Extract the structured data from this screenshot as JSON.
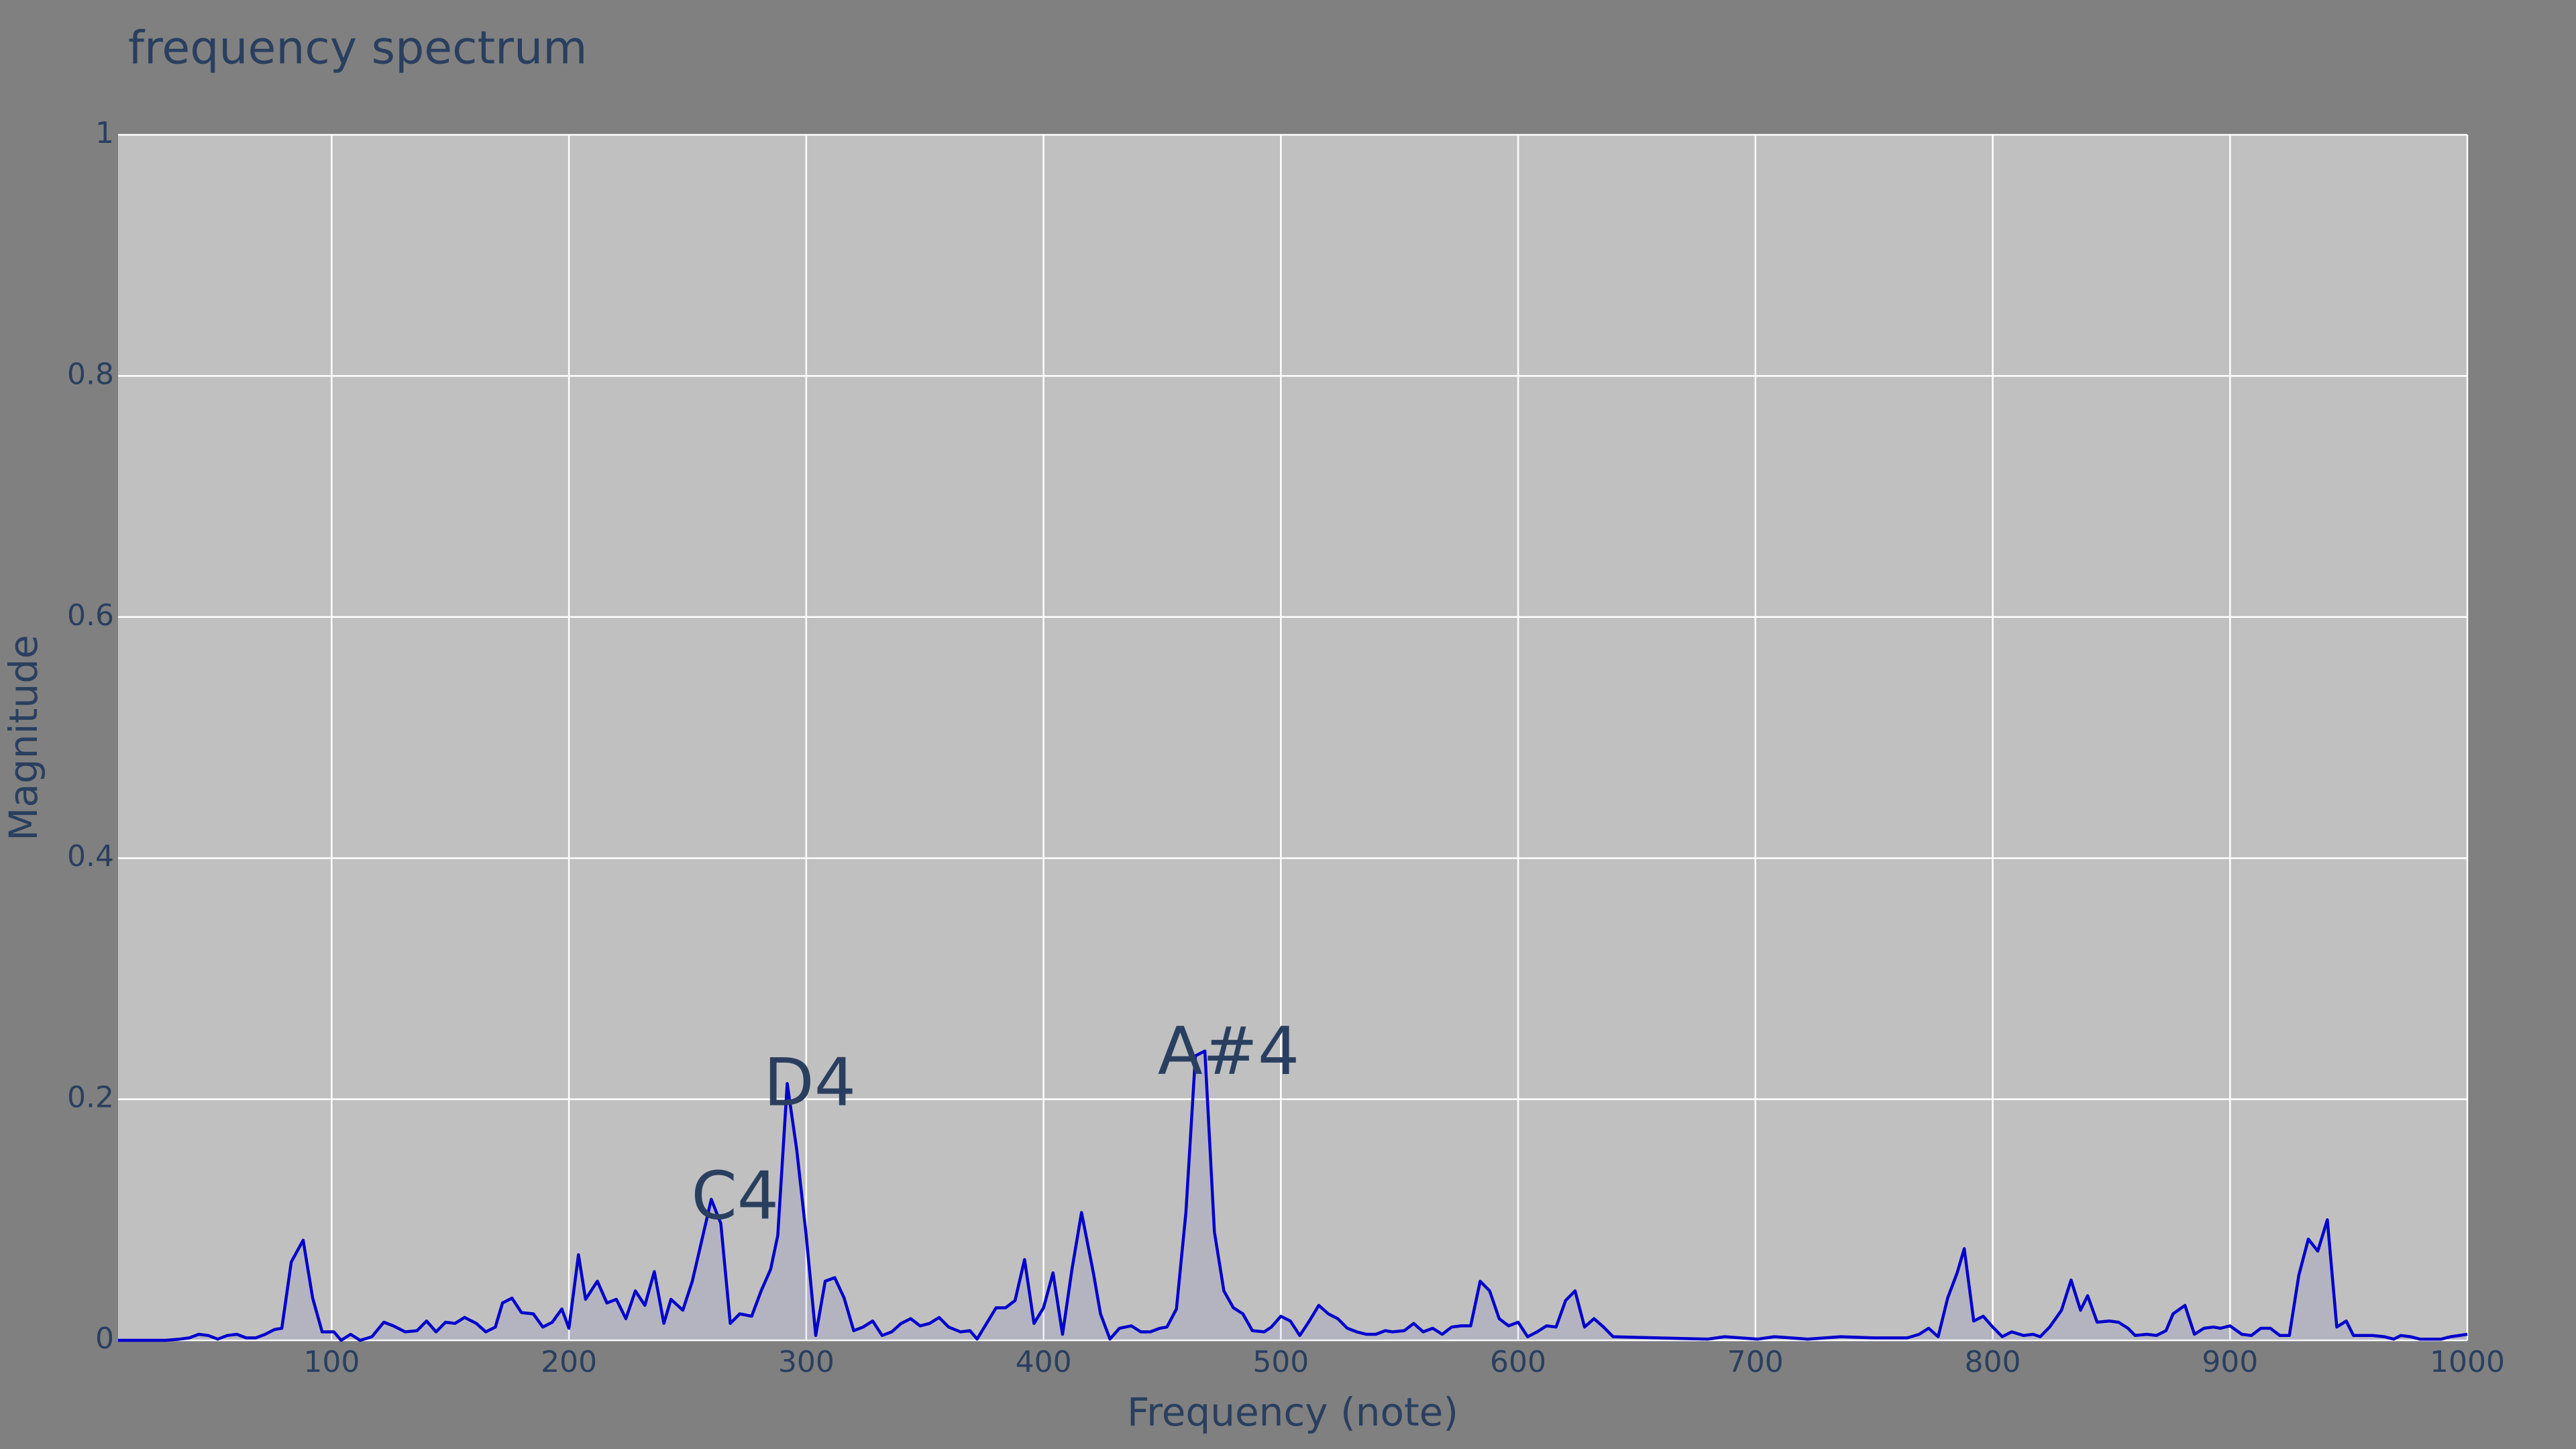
{
  "chart_data": {
    "type": "line",
    "title": "frequency spectrum",
    "x_label": "Frequency (note)",
    "y_label": "Magnitude",
    "x": [
      10,
      20,
      30,
      36,
      40,
      44,
      48,
      52,
      56,
      60,
      64,
      68,
      72,
      76,
      79,
      83,
      88,
      92,
      96,
      101,
      104,
      108,
      112,
      117,
      122,
      126,
      131,
      136,
      140,
      144,
      148,
      152,
      156,
      161,
      165,
      169,
      172,
      176,
      180,
      185,
      189,
      193,
      197,
      200,
      204,
      207,
      212,
      216,
      220,
      224,
      228,
      232,
      236,
      240,
      243,
      248,
      252,
      256,
      260,
      264,
      268,
      272,
      277,
      281,
      285,
      288,
      292,
      296,
      300,
      304,
      308,
      312,
      316,
      320,
      324,
      328,
      332,
      336,
      340,
      344,
      348,
      352,
      356,
      360,
      365,
      369,
      372,
      376,
      380,
      384,
      388,
      392,
      396,
      400,
      404,
      408,
      412,
      416,
      421,
      424,
      428,
      432,
      437,
      441,
      445,
      449,
      452,
      456,
      460,
      464,
      468,
      472,
      476,
      480,
      484,
      488,
      493,
      496,
      500,
      504,
      508,
      512,
      516,
      520,
      524,
      528,
      532,
      536,
      540,
      544,
      547,
      552,
      556,
      560,
      564,
      568,
      572,
      576,
      580,
      584,
      588,
      592,
      596,
      600,
      604,
      608,
      612,
      616,
      620,
      624,
      628,
      632,
      636,
      640,
      659,
      680,
      687,
      701,
      708,
      722,
      736,
      750,
      764,
      769,
      773,
      777,
      781,
      785,
      788,
      792,
      796,
      800,
      804,
      808,
      813,
      817,
      820,
      824,
      829,
      833,
      837,
      840,
      844,
      849,
      853,
      857,
      860,
      865,
      869,
      873,
      876,
      881,
      885,
      889,
      893,
      896,
      900,
      905,
      909,
      913,
      917,
      921,
      925,
      929,
      933,
      937,
      941,
      945,
      949,
      952,
      956,
      960,
      965,
      969,
      972,
      976,
      980,
      985,
      989,
      993,
      1000
    ],
    "values": [
      0,
      0,
      0,
      0.001,
      0.002,
      0.005,
      0.004,
      0.001,
      0.004,
      0.005,
      0.002,
      0.002,
      0.005,
      0.009,
      0.01,
      0.065,
      0.083,
      0.035,
      0.007,
      0.007,
      0,
      0.005,
      0,
      0.003,
      0.015,
      0.012,
      0.007,
      0.008,
      0.016,
      0.007,
      0.015,
      0.014,
      0.019,
      0.014,
      0.007,
      0.011,
      0.031,
      0.035,
      0.023,
      0.022,
      0.011,
      0.015,
      0.026,
      0.01,
      0.071,
      0.034,
      0.049,
      0.031,
      0.034,
      0.018,
      0.041,
      0.029,
      0.057,
      0.014,
      0.034,
      0.025,
      0.049,
      0.083,
      0.117,
      0.097,
      0.014,
      0.022,
      0.02,
      0.041,
      0.059,
      0.087,
      0.213,
      0.158,
      0.087,
      0.004,
      0.049,
      0.052,
      0.035,
      0.008,
      0.011,
      0.016,
      0.004,
      0.007,
      0.014,
      0.018,
      0.012,
      0.014,
      0.019,
      0.011,
      0.007,
      0.008,
      0.001,
      0.014,
      0.027,
      0.027,
      0.033,
      0.067,
      0.014,
      0.027,
      0.056,
      0.005,
      0.059,
      0.106,
      0.056,
      0.022,
      0.001,
      0.01,
      0.012,
      0.007,
      0.007,
      0.01,
      0.011,
      0.026,
      0.106,
      0.236,
      0.24,
      0.09,
      0.041,
      0.027,
      0.022,
      0.008,
      0.007,
      0.011,
      0.02,
      0.016,
      0.004,
      0.016,
      0.029,
      0.022,
      0.018,
      0.01,
      0.007,
      0.005,
      0.005,
      0.008,
      0.007,
      0.008,
      0.014,
      0.007,
      0.01,
      0.005,
      0.011,
      0.012,
      0.012,
      0.049,
      0.041,
      0.018,
      0.012,
      0.015,
      0.003,
      0.007,
      0.012,
      0.011,
      0.033,
      0.041,
      0.011,
      0.018,
      0.011,
      0.003,
      0.002,
      0.001,
      0.003,
      0.001,
      0.003,
      0.001,
      0.003,
      0.002,
      0.002,
      0.005,
      0.01,
      0.003,
      0.035,
      0.056,
      0.076,
      0.016,
      0.02,
      0.011,
      0.003,
      0.007,
      0.004,
      0.005,
      0.003,
      0.011,
      0.025,
      0.05,
      0.025,
      0.037,
      0.015,
      0.016,
      0.015,
      0.01,
      0.004,
      0.005,
      0.004,
      0.008,
      0.022,
      0.029,
      0.005,
      0.01,
      0.011,
      0.01,
      0.012,
      0.005,
      0.004,
      0.01,
      0.01,
      0.004,
      0.004,
      0.054,
      0.084,
      0.074,
      0.1,
      0.011,
      0.016,
      0.004,
      0.004,
      0.004,
      0.003,
      0.001,
      0.004,
      0.003,
      0.001,
      0.001,
      0.001,
      0.003,
      0.005
    ],
    "color": "#0000cc",
    "fill": "tozeroy",
    "xlim": [
      10,
      1000
    ],
    "xticks": [
      100,
      200,
      300,
      400,
      500,
      600,
      700,
      800,
      900,
      1000
    ],
    "ylim": [
      0,
      1
    ],
    "yticks": [
      0,
      0.2,
      0.4,
      0.6,
      0.8,
      1
    ],
    "grid": true,
    "annotations": [
      {
        "text": "C4",
        "x": 270,
        "y": 0.116
      },
      {
        "text": "D4",
        "x": 301.5,
        "y": 0.21
      },
      {
        "text": "A#4",
        "x": 478,
        "y": 0.236
      }
    ]
  }
}
